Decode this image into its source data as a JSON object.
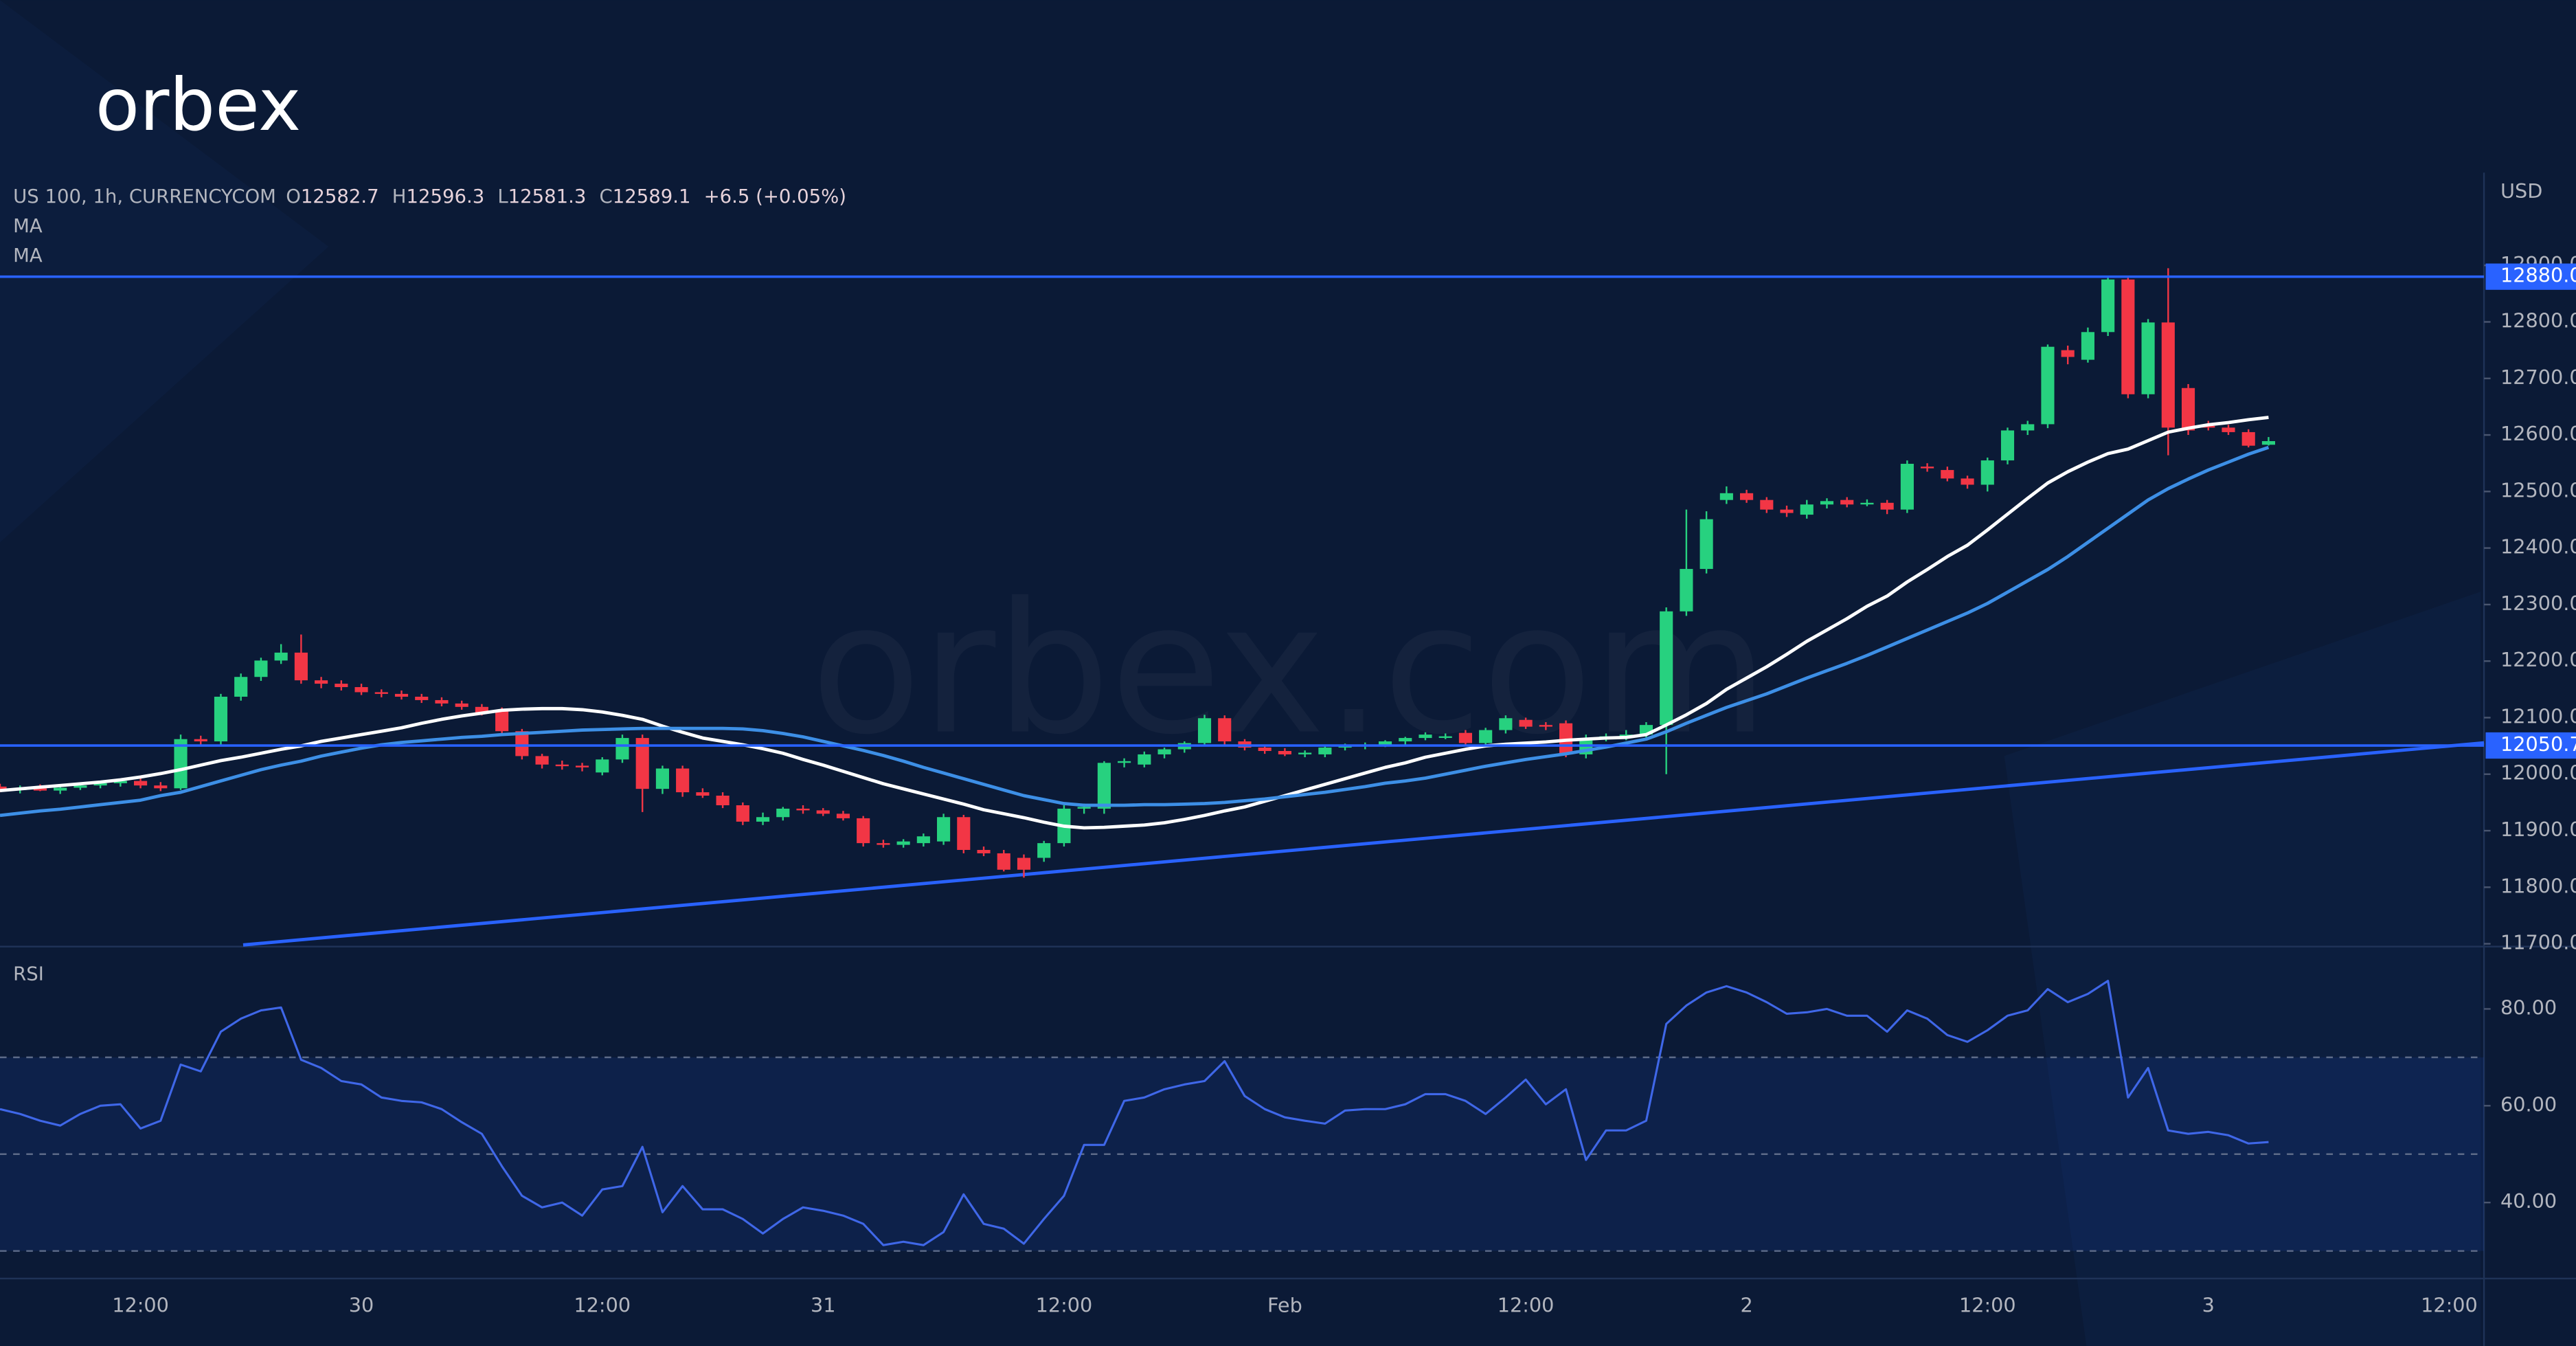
{
  "logo": "orbex",
  "watermark": "orbex.com",
  "chart_data": [
    {
      "type": "candlestick",
      "header": {
        "symbol": "US 100, 1h, CURRENCYCOM",
        "fields": [
          "O",
          "H",
          "L",
          "C"
        ],
        "change": "+6.5 (+0.05%)"
      },
      "y_axis_label": "USD",
      "categories": [
        null,
        null,
        null,
        null,
        null,
        null,
        null,
        "12:00",
        null,
        null,
        null,
        null,
        null,
        null,
        null,
        null,
        null,
        null,
        "30",
        null,
        null,
        null,
        null,
        null,
        null,
        null,
        null,
        null,
        null,
        null,
        "12:00",
        null,
        null,
        null,
        null,
        null,
        null,
        null,
        null,
        null,
        null,
        "31",
        null,
        null,
        null,
        null,
        null,
        null,
        null,
        null,
        null,
        null,
        null,
        "12:00",
        null,
        null,
        null,
        null,
        null,
        null,
        null,
        null,
        null,
        null,
        "Feb",
        null,
        null,
        null,
        null,
        null,
        null,
        null,
        null,
        null,
        null,
        null,
        "12:00",
        null,
        null,
        null,
        null,
        null,
        null,
        null,
        null,
        null,
        null,
        "2",
        null,
        null,
        null,
        null,
        null,
        null,
        null,
        null,
        null,
        null,
        null,
        "12:00",
        null,
        null,
        null,
        null,
        null,
        null,
        null,
        null,
        null,
        null,
        "3",
        null,
        null,
        null,
        null,
        null,
        null,
        null,
        null,
        null,
        null,
        null,
        "12:00"
      ],
      "open": [
        11978,
        11972,
        11975,
        11971,
        11976,
        11980,
        11984,
        11988,
        11980,
        11975,
        12062,
        12058,
        12137,
        12172,
        12201,
        12215,
        12166,
        12160,
        12154,
        12145,
        12142,
        12137,
        12131,
        12125,
        12119,
        12113,
        12076,
        12032,
        12017,
        12015,
        12003,
        12026,
        12064,
        11974,
        12010,
        11968,
        11962,
        11945,
        11916,
        11924,
        11939,
        11936,
        11930,
        11922,
        11878,
        11875,
        11878,
        11881,
        11924,
        11866,
        11860,
        11852,
        11852,
        11878,
        11939,
        11939,
        12020,
        12017,
        12035,
        12044,
        12055,
        12099,
        12058,
        12047,
        12041,
        12035,
        12035,
        12047,
        12050,
        12052,
        12058,
        12064,
        12067,
        12073,
        12055,
        12078,
        12096,
        12087,
        12090,
        12035,
        12064,
        12067,
        12070,
        12087,
        12288,
        12363,
        12485,
        12497,
        12485,
        12468,
        12459,
        12477,
        12485,
        12480,
        12480,
        12468,
        12544,
        12538,
        12523,
        12512,
        12555,
        12608,
        12619,
        12750,
        12733,
        12782,
        12875,
        12672,
        12799,
        12683,
        12616,
        12613,
        12605,
        12582.7,
        null,
        null,
        null,
        null,
        null,
        null,
        null,
        null,
        null
      ],
      "high": [
        11983,
        11980,
        11982,
        11979,
        11985,
        11987,
        11992,
        11995,
        11986,
        12070,
        12068,
        12142,
        12178,
        12206,
        12230,
        12247,
        12172,
        12166,
        12160,
        12150,
        12148,
        12142,
        12136,
        12130,
        12124,
        12118,
        12080,
        12036,
        12024,
        12020,
        12030,
        12070,
        12070,
        12015,
        12015,
        11975,
        11968,
        11950,
        11932,
        11942,
        11945,
        11940,
        11935,
        11926,
        11884,
        11885,
        11895,
        11930,
        11928,
        11872,
        11866,
        11858,
        11882,
        11945,
        11948,
        12023,
        12028,
        12040,
        12047,
        12058,
        12105,
        12104,
        12062,
        12052,
        12046,
        12042,
        12052,
        12054,
        12056,
        12060,
        12066,
        12074,
        12072,
        12078,
        12082,
        12104,
        12100,
        12092,
        12095,
        12070,
        12072,
        12078,
        12092,
        12295,
        12468,
        12465,
        12509,
        12503,
        12490,
        12475,
        12485,
        12488,
        12490,
        12486,
        12485,
        12555,
        12550,
        12544,
        12528,
        12560,
        12613,
        12625,
        12760,
        12758,
        12790,
        12881,
        12880,
        12805,
        12895,
        12690,
        12625,
        12618,
        12610,
        12596.3,
        null,
        null,
        null,
        null,
        null,
        null,
        null,
        null,
        null
      ],
      "low": [
        11968,
        11966,
        11970,
        11965,
        11972,
        11975,
        11978,
        11975,
        11970,
        11972,
        12052,
        12050,
        12130,
        12165,
        12195,
        12160,
        12152,
        12148,
        12140,
        12136,
        12132,
        12126,
        12120,
        12114,
        12104,
        12070,
        12026,
        12010,
        12008,
        12005,
        11998,
        12020,
        11933,
        11965,
        11960,
        11958,
        11940,
        11910,
        11910,
        11918,
        11930,
        11926,
        11918,
        11872,
        11870,
        11870,
        11872,
        11875,
        11860,
        11855,
        11828,
        11817,
        11845,
        11872,
        11930,
        11930,
        12012,
        12012,
        12028,
        12038,
        12050,
        12052,
        12042,
        12036,
        12032,
        12030,
        12030,
        12042,
        12044,
        12048,
        12052,
        12060,
        12062,
        12050,
        12050,
        12072,
        12080,
        12078,
        12030,
        12028,
        12058,
        12060,
        12065,
        12000,
        12280,
        12355,
        12478,
        12480,
        12462,
        12455,
        12452,
        12470,
        12472,
        12474,
        12460,
        12462,
        12535,
        12518,
        12505,
        12500,
        12548,
        12600,
        12612,
        12725,
        12728,
        12775,
        12665,
        12665,
        12564,
        12600,
        12608,
        12600,
        12578,
        12581.3,
        null,
        null,
        null,
        null,
        null,
        null,
        null,
        null,
        null
      ],
      "close": [
        11972,
        11975,
        11971,
        11976,
        11980,
        11984,
        11988,
        11980,
        11975,
        12062,
        12058,
        12137,
        12172,
        12201,
        12215,
        12166,
        12160,
        12154,
        12145,
        12142,
        12137,
        12131,
        12125,
        12119,
        12108,
        12076,
        12032,
        12017,
        12015,
        12012,
        12026,
        12064,
        11974,
        12010,
        11968,
        11962,
        11945,
        11916,
        11924,
        11939,
        11936,
        11930,
        11922,
        11878,
        11875,
        11881,
        11890,
        11924,
        11866,
        11860,
        11831,
        11831,
        11878,
        11939,
        11942,
        12020,
        12023,
        12035,
        12044,
        12055,
        12099,
        12058,
        12047,
        12041,
        12035,
        12038,
        12047,
        12050,
        12052,
        12058,
        12064,
        12070,
        12067,
        12055,
        12078,
        12099,
        12084,
        12084,
        12035,
        12064,
        12067,
        12070,
        12087,
        12288,
        12363,
        12451,
        12497,
        12485,
        12468,
        12462,
        12477,
        12483,
        12477,
        12480,
        12468,
        12549,
        12541,
        12523,
        12512,
        12555,
        12608,
        12619,
        12756,
        12738,
        12782,
        12875,
        12672,
        12799,
        12613,
        12608,
        12613,
        12605,
        12581,
        12589.1,
        null,
        null,
        null,
        null,
        null,
        null,
        null,
        null,
        null
      ],
      "up_color": "#27d17f",
      "down_color": "#f23645",
      "series": [
        {
          "name": "MA",
          "color": "#ffffff",
          "values": [
            11971,
            11974,
            11977,
            11980,
            11983,
            11986,
            11990,
            11995,
            12001,
            12008,
            12016,
            12024,
            12030,
            12037,
            12044,
            12050,
            12058,
            12064,
            12070,
            12076,
            12082,
            12090,
            12097,
            12103,
            12108,
            12113,
            12115,
            12116,
            12116,
            12114,
            12110,
            12104,
            12097,
            12085,
            12074,
            12064,
            12058,
            12052,
            12045,
            12037,
            12026,
            12016,
            12005,
            11994,
            11983,
            11974,
            11965,
            11956,
            11947,
            11937,
            11930,
            11923,
            11915,
            11908,
            11905,
            11906,
            11908,
            11910,
            11914,
            11920,
            11927,
            11935,
            11942,
            11952,
            11962,
            11972,
            11982,
            11992,
            12002,
            12012,
            12020,
            12030,
            12037,
            12044,
            12050,
            12053,
            12055,
            12057,
            12060,
            12062,
            12064,
            12065,
            12070,
            12087,
            12105,
            12125,
            12150,
            12170,
            12190,
            12212,
            12235,
            12255,
            12275,
            12297,
            12315,
            12340,
            12362,
            12385,
            12405,
            12432,
            12460,
            12488,
            12515,
            12535,
            12552,
            12567,
            12575,
            12590,
            12605,
            12612,
            12618,
            12622,
            12627,
            12631,
            null,
            null,
            null,
            null,
            null,
            null,
            null,
            null,
            null
          ]
        },
        {
          "name": "MA",
          "color": "#3d8fe6",
          "values": [
            11927,
            11931,
            11935,
            11938,
            11942,
            11946,
            11950,
            11954,
            11962,
            11968,
            11978,
            11988,
            11998,
            12008,
            12016,
            12023,
            12032,
            12039,
            12046,
            12052,
            12056,
            12059,
            12062,
            12065,
            12067,
            12070,
            12072,
            12074,
            12076,
            12078,
            12079,
            12080,
            12081,
            12081,
            12081,
            12081,
            12081,
            12080,
            12077,
            12072,
            12066,
            12058,
            12050,
            12042,
            12033,
            12023,
            12012,
            12002,
            11992,
            11982,
            11972,
            11962,
            11955,
            11948,
            11945,
            11945,
            11945,
            11946,
            11946,
            11947,
            11948,
            11950,
            11953,
            11956,
            11960,
            11964,
            11968,
            11973,
            11978,
            11984,
            11988,
            11993,
            12000,
            12007,
            12014,
            12020,
            12026,
            12031,
            12036,
            12042,
            12048,
            12055,
            12062,
            12075,
            12090,
            12104,
            12118,
            12130,
            12142,
            12156,
            12170,
            12183,
            12196,
            12210,
            12225,
            12240,
            12255,
            12270,
            12285,
            12302,
            12322,
            12342,
            12362,
            12385,
            12410,
            12435,
            12460,
            12485,
            12505,
            12522,
            12538,
            12552,
            12566,
            12578,
            null,
            null,
            null,
            null,
            null,
            null,
            null,
            null,
            null
          ]
        }
      ],
      "ylim": [
        11695,
        13064
      ],
      "yticks": [
        {
          "value": 11700,
          "label": "11700.0"
        },
        {
          "value": 11800,
          "label": "11800.0"
        },
        {
          "value": 11900,
          "label": "11900.0"
        },
        {
          "value": 12000,
          "label": "12000.0"
        },
        {
          "value": 12100,
          "label": "12100.0"
        },
        {
          "value": 12200,
          "label": "12200.0"
        },
        {
          "value": 12300,
          "label": "12300.0"
        },
        {
          "value": 12400,
          "label": "12400.0"
        },
        {
          "value": 12500,
          "label": "12500.0"
        },
        {
          "value": 12600,
          "label": "12600.0"
        },
        {
          "value": 12700,
          "label": "12700.0"
        },
        {
          "value": 12800,
          "label": "12800.0"
        },
        {
          "value": 12900,
          "label": "12900.0"
        }
      ],
      "hlines": [
        {
          "value": 12880,
          "label": "12880.0"
        },
        12050.7
      ],
      "hline_color": "#2962ff"
    },
    {
      "type": "line",
      "series": [
        {
          "name": "RSI",
          "color": "#3f67e8",
          "values": [
            59.3,
            58.3,
            56.9,
            55.9,
            58.3,
            60,
            60.3,
            55.3,
            56.9,
            68.5,
            67.1,
            75.3,
            78,
            79.7,
            80.3,
            69.5,
            67.8,
            65.1,
            64.4,
            61.7,
            61,
            60.7,
            59.3,
            56.6,
            54.2,
            47.5,
            41.4,
            39,
            40,
            37.3,
            42.7,
            43.4,
            51.5,
            38,
            43.4,
            38.6,
            38.6,
            36.6,
            33.6,
            36.6,
            39,
            38.3,
            37.3,
            35.6,
            31.2,
            31.9,
            31.2,
            33.9,
            41.7,
            35.6,
            34.6,
            31.5,
            36.6,
            41.4,
            51.9,
            51.9,
            61,
            61.7,
            63.4,
            64.4,
            65.1,
            69.2,
            62,
            59.3,
            57.6,
            56.9,
            56.3,
            59,
            59.3,
            59.3,
            60.3,
            62.4,
            62.4,
            61,
            58.3,
            61.7,
            65.4,
            60.3,
            63.4,
            48.8,
            54.9,
            54.9,
            56.9,
            76.9,
            80.7,
            83.4,
            84.7,
            83.4,
            81.4,
            79,
            79.3,
            80,
            78.6,
            78.6,
            75.3,
            79.7,
            78,
            74.6,
            73.2,
            75.6,
            78.6,
            79.7,
            84.1,
            81.4,
            83.1,
            85.8,
            61.7,
            67.8,
            54.9,
            54.2,
            54.6,
            53.9,
            52.2,
            52.5,
            null,
            null,
            null,
            null,
            null,
            null,
            null,
            null,
            null
          ]
        }
      ],
      "ylim": [
        24.3,
        92.2
      ],
      "yticks": [
        {
          "value": 40,
          "label": "40.00"
        },
        {
          "value": 60,
          "label": "60.00"
        },
        {
          "value": 80,
          "label": "80.00"
        }
      ],
      "levels": [
        70,
        50,
        30
      ],
      "band_color": "#2962ff"
    }
  ]
}
